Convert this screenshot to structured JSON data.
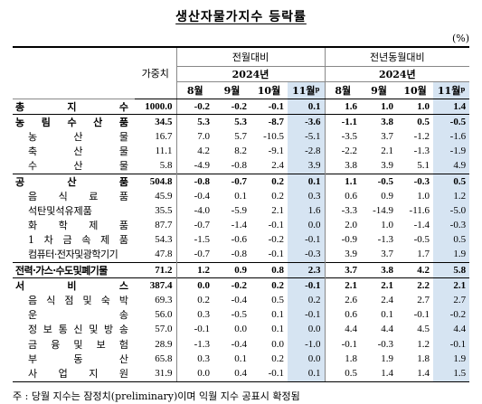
{
  "title": "생산자물가지수 등락률",
  "unit": "(%)",
  "header": {
    "weight": "가중치",
    "group_mom": "전월대비",
    "group_yoy": "전년동월대비",
    "year_mom": "2024년",
    "year_yoy": "2024년",
    "months": [
      "8월",
      "9월",
      "10월",
      "11월"
    ],
    "prelim_mark": "p"
  },
  "rows": [
    {
      "label": "총 지 수",
      "type": "total",
      "weight": "1000.0",
      "mom": [
        "-0.2",
        "-0.2",
        "-0.1",
        "0.1"
      ],
      "yoy": [
        "1.6",
        "1.0",
        "1.0",
        "1.4"
      ]
    },
    {
      "label": "농 림 수 산 품",
      "type": "major",
      "weight": "34.5",
      "mom": [
        "5.3",
        "5.3",
        "-8.7",
        "-3.6"
      ],
      "yoy": [
        "-1.1",
        "3.8",
        "0.5",
        "-0.5"
      ]
    },
    {
      "label": "농 산 물",
      "type": "minor",
      "weight": "16.7",
      "mom": [
        "7.0",
        "5.7",
        "-10.5",
        "-5.1"
      ],
      "yoy": [
        "-3.5",
        "3.7",
        "-1.2",
        "-1.6"
      ]
    },
    {
      "label": "축 산 물",
      "type": "minor",
      "weight": "11.1",
      "mom": [
        "4.2",
        "8.2",
        "-9.1",
        "-2.8"
      ],
      "yoy": [
        "-2.2",
        "2.1",
        "-1.3",
        "-1.9"
      ]
    },
    {
      "label": "수 산 물",
      "type": "minor",
      "weight": "5.8",
      "mom": [
        "-4.9",
        "-0.8",
        "2.4",
        "3.9"
      ],
      "yoy": [
        "3.8",
        "3.9",
        "5.1",
        "4.9"
      ]
    },
    {
      "label": "공 산 품",
      "type": "major",
      "weight": "504.8",
      "mom": [
        "-0.8",
        "-0.7",
        "0.2",
        "0.1"
      ],
      "yoy": [
        "1.1",
        "-0.5",
        "-0.3",
        "0.5"
      ]
    },
    {
      "label": "음 식 료 품",
      "type": "minor",
      "weight": "45.9",
      "mom": [
        "-0.4",
        "0.1",
        "0.2",
        "0.3"
      ],
      "yoy": [
        "0.6",
        "0.9",
        "1.0",
        "1.2"
      ]
    },
    {
      "label": "석탄및석유제품",
      "type": "minor",
      "weight": "35.5",
      "mom": [
        "-4.0",
        "-5.9",
        "2.1",
        "1.6"
      ],
      "yoy": [
        "-3.3",
        "-14.9",
        "-11.6",
        "-5.0"
      ]
    },
    {
      "label": "화 학 제 품",
      "type": "minor",
      "weight": "87.7",
      "mom": [
        "-0.7",
        "-1.4",
        "-0.1",
        "0.0"
      ],
      "yoy": [
        "2.0",
        "1.0",
        "-1.4",
        "-0.3"
      ]
    },
    {
      "label": "1 차 금 속 제 품",
      "type": "minor",
      "weight": "54.3",
      "mom": [
        "-1.5",
        "-0.6",
        "-0.2",
        "-0.1"
      ],
      "yoy": [
        "-0.9",
        "-1.3",
        "-0.5",
        "0.5"
      ]
    },
    {
      "label": "컴퓨터·전자및광학기기",
      "type": "minor",
      "tight": true,
      "weight": "47.8",
      "mom": [
        "-0.7",
        "-0.8",
        "-0.1",
        "-0.3"
      ],
      "yoy": [
        "3.9",
        "3.7",
        "1.7",
        "1.9"
      ]
    },
    {
      "label": "전력·가스·수도및폐기물",
      "type": "major",
      "tight": true,
      "weight": "71.2",
      "mom": [
        "1.2",
        "0.9",
        "0.8",
        "2.3"
      ],
      "yoy": [
        "3.7",
        "3.8",
        "4.2",
        "5.8"
      ]
    },
    {
      "label": "서 비 스",
      "type": "major",
      "weight": "387.4",
      "mom": [
        "0.0",
        "-0.2",
        "0.2",
        "-0.1"
      ],
      "yoy": [
        "2.1",
        "2.1",
        "2.2",
        "2.1"
      ]
    },
    {
      "label": "음 식 점 및 숙 박",
      "type": "minor",
      "weight": "69.3",
      "mom": [
        "0.2",
        "-0.4",
        "0.5",
        "0.2"
      ],
      "yoy": [
        "2.6",
        "2.4",
        "2.7",
        "2.7"
      ]
    },
    {
      "label": "운 송",
      "type": "minor",
      "weight": "56.0",
      "mom": [
        "0.3",
        "-0.5",
        "0.1",
        "-0.1"
      ],
      "yoy": [
        "0.6",
        "0.1",
        "-0.1",
        "-0.2"
      ]
    },
    {
      "label": "정 보 통 신 및 방 송",
      "type": "minor",
      "weight": "57.0",
      "mom": [
        "-0.1",
        "0.0",
        "0.1",
        "0.0"
      ],
      "yoy": [
        "4.4",
        "4.4",
        "4.5",
        "4.4"
      ]
    },
    {
      "label": "금 융 및 보 험",
      "type": "minor",
      "weight": "28.9",
      "mom": [
        "-1.3",
        "-0.4",
        "0.0",
        "-1.0"
      ],
      "yoy": [
        "-0.1",
        "-0.3",
        "1.2",
        "-0.1"
      ]
    },
    {
      "label": "부 동 산",
      "type": "minor",
      "weight": "65.8",
      "mom": [
        "0.3",
        "0.1",
        "0.2",
        "0.0"
      ],
      "yoy": [
        "1.8",
        "1.9",
        "1.8",
        "1.9"
      ]
    },
    {
      "label": "사 업 지 원",
      "type": "minor",
      "weight": "31.9",
      "mom": [
        "0.0",
        "0.4",
        "-0.1",
        "0.1"
      ],
      "yoy": [
        "0.5",
        "1.4",
        "1.4",
        "1.5"
      ]
    }
  ],
  "note": "주 : 당월 지수는 잠정치(preliminary)이며 익월 지수 공표시 확정됨",
  "colors": {
    "highlight": "#d6e4f2"
  }
}
